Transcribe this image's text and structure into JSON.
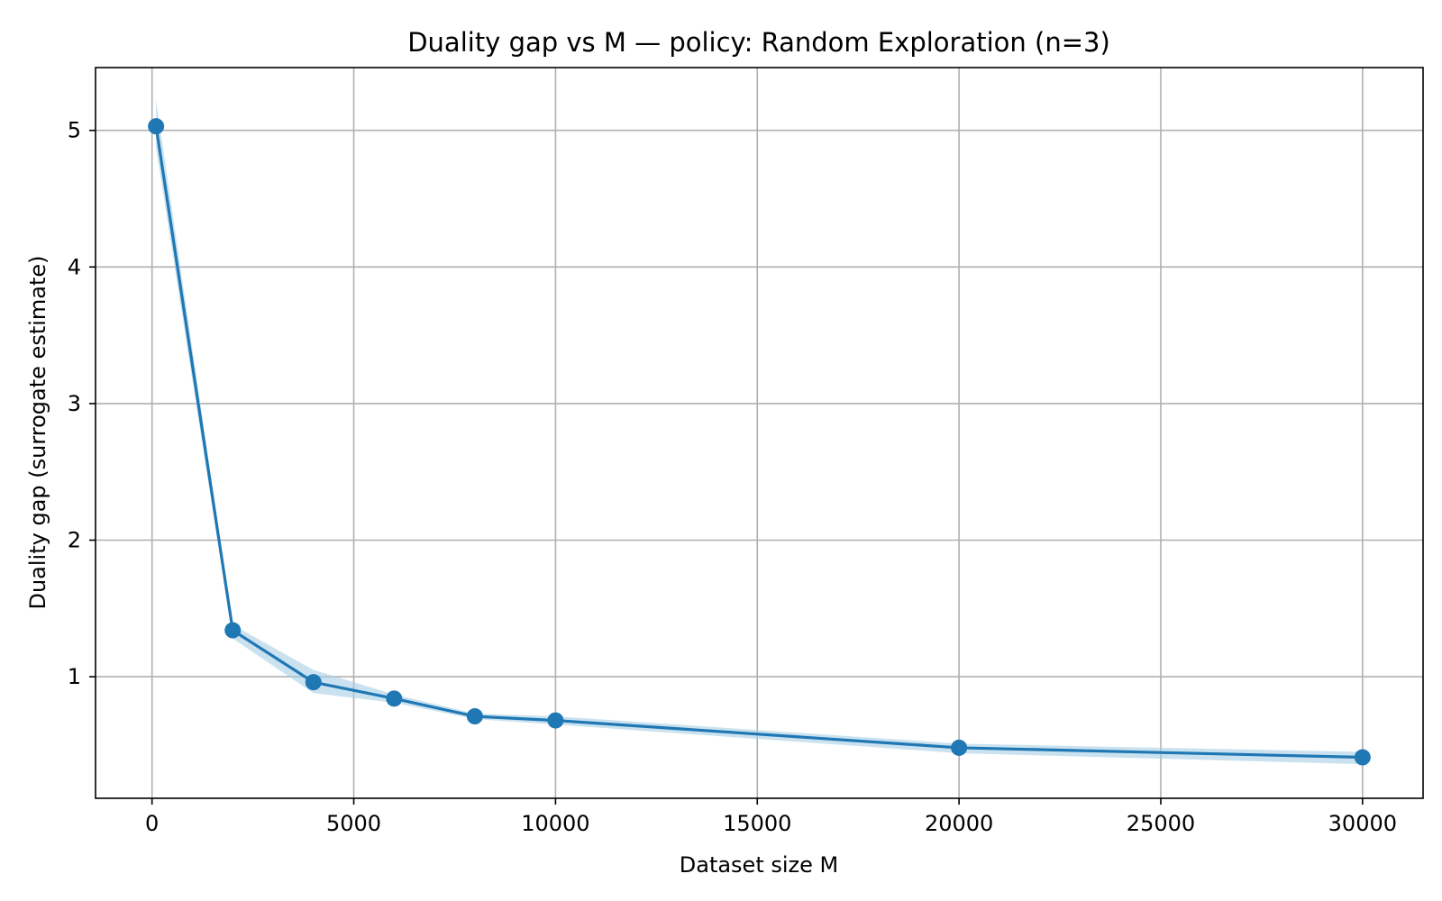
{
  "chart_data": {
    "type": "line",
    "title": "Duality gap vs M  — policy: Random Exploration  (n=3)",
    "xlabel": "Dataset size M",
    "ylabel": "Duality gap (surrogate estimate)",
    "xlim": [
      -1400,
      31500
    ],
    "ylim": [
      0.11,
      5.46
    ],
    "x_ticks": [
      0,
      5000,
      10000,
      15000,
      20000,
      25000,
      30000
    ],
    "x_tick_labels": [
      "0",
      "5000",
      "10000",
      "15000",
      "20000",
      "25000",
      "30000"
    ],
    "y_ticks": [
      1,
      2,
      3,
      4,
      5
    ],
    "y_tick_labels": [
      "1",
      "2",
      "3",
      "4",
      "5"
    ],
    "grid": true,
    "legend": "none",
    "series": [
      {
        "x": [
          100,
          2000,
          4000,
          6000,
          8000,
          10000,
          20000,
          30000
        ],
        "y": [
          5.03,
          1.34,
          0.96,
          0.84,
          0.71,
          0.68,
          0.48,
          0.41
        ],
        "band_lower": [
          4.87,
          1.28,
          0.88,
          0.81,
          0.69,
          0.65,
          0.44,
          0.36
        ],
        "band_upper": [
          5.22,
          1.38,
          1.05,
          0.87,
          0.73,
          0.71,
          0.51,
          0.45
        ],
        "color": "#1f77b4",
        "band_color": "#a6cfe5",
        "marker": "circle"
      }
    ]
  }
}
